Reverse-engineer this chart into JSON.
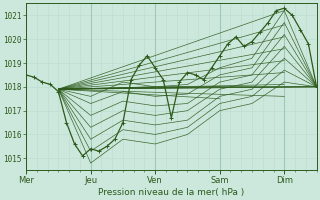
{
  "title": "",
  "xlabel": "Pression niveau de la mer( hPa )",
  "ylabel": "",
  "bg_color": "#cce8dc",
  "grid_color_major": "#a0c8b8",
  "grid_color_minor": "#b8dccf",
  "line_color": "#2d5a1b",
  "ylim": [
    1014.5,
    1021.5
  ],
  "yticks": [
    1015,
    1016,
    1017,
    1018,
    1019,
    1020,
    1021
  ],
  "day_labels": [
    "Mer",
    "Jeu",
    "Ven",
    "Sam",
    "Dim"
  ],
  "day_positions": [
    0,
    24,
    48,
    72,
    96
  ],
  "xlim": [
    0,
    108
  ],
  "fan_origin_x": 12,
  "fan_origin_y": 1017.9,
  "fan_endpoints": [
    [
      108,
      1018.0
    ],
    [
      108,
      1018.0
    ],
    [
      96,
      1021.2
    ],
    [
      96,
      1020.6
    ],
    [
      96,
      1020.1
    ],
    [
      96,
      1019.6
    ],
    [
      96,
      1019.1
    ],
    [
      96,
      1018.6
    ],
    [
      96,
      1018.1
    ],
    [
      96,
      1017.6
    ],
    [
      72,
      1018.0
    ],
    [
      72,
      1017.5
    ],
    [
      48,
      1018.0
    ]
  ],
  "main_line_x": [
    0,
    3,
    6,
    9,
    12,
    15,
    18,
    21,
    24,
    27,
    30,
    33,
    36,
    39,
    42,
    45,
    48,
    51,
    54,
    57,
    60,
    63,
    66,
    69,
    72,
    75,
    78,
    81,
    84,
    87,
    90,
    93,
    96,
    99,
    102,
    105,
    108
  ],
  "main_line_y": [
    1018.5,
    1018.4,
    1018.2,
    1018.1,
    1017.8,
    1016.5,
    1015.6,
    1015.1,
    1015.4,
    1015.3,
    1015.5,
    1015.8,
    1016.5,
    1018.3,
    1018.9,
    1019.3,
    1018.8,
    1018.3,
    1016.7,
    1018.2,
    1018.6,
    1018.5,
    1018.3,
    1018.8,
    1019.3,
    1019.8,
    1020.1,
    1019.7,
    1019.9,
    1020.3,
    1020.7,
    1021.2,
    1021.3,
    1021.0,
    1020.4,
    1019.8,
    1018.0
  ],
  "extra_lines": [
    {
      "x": [
        12,
        24,
        36,
        48,
        60,
        72,
        84,
        96,
        108
      ],
      "y": [
        1017.9,
        1017.6,
        1018.2,
        1018.0,
        1018.1,
        1018.8,
        1019.2,
        1021.2,
        1018.0
      ]
    },
    {
      "x": [
        12,
        24,
        36,
        48,
        60,
        72,
        84,
        96,
        108
      ],
      "y": [
        1017.9,
        1017.3,
        1017.8,
        1017.6,
        1017.7,
        1018.5,
        1018.8,
        1020.7,
        1018.0
      ]
    },
    {
      "x": [
        12,
        24,
        36,
        48,
        60,
        72,
        84,
        96,
        108
      ],
      "y": [
        1017.9,
        1016.8,
        1017.4,
        1017.2,
        1017.3,
        1018.2,
        1018.5,
        1020.2,
        1018.0
      ]
    },
    {
      "x": [
        12,
        24,
        36,
        48,
        60,
        72,
        84,
        96,
        108
      ],
      "y": [
        1017.9,
        1016.3,
        1017.0,
        1016.8,
        1017.0,
        1017.9,
        1018.2,
        1019.7,
        1018.0
      ]
    },
    {
      "x": [
        12,
        24,
        36,
        48,
        60,
        72,
        84,
        96,
        108
      ],
      "y": [
        1017.9,
        1015.8,
        1016.6,
        1016.4,
        1016.6,
        1017.6,
        1017.9,
        1019.2,
        1018.0
      ]
    },
    {
      "x": [
        12,
        24,
        36,
        48,
        60,
        72,
        84,
        96,
        108
      ],
      "y": [
        1017.9,
        1015.3,
        1016.2,
        1016.0,
        1016.3,
        1017.3,
        1017.6,
        1018.7,
        1018.0
      ]
    },
    {
      "x": [
        12,
        24,
        36,
        48,
        60,
        72,
        84,
        96,
        108
      ],
      "y": [
        1017.9,
        1014.8,
        1015.8,
        1015.6,
        1016.0,
        1017.0,
        1017.3,
        1018.2,
        1018.0
      ]
    },
    {
      "x": [
        12,
        72,
        108
      ],
      "y": [
        1017.9,
        1018.0,
        1018.0
      ]
    },
    {
      "x": [
        12,
        48,
        108
      ],
      "y": [
        1017.9,
        1018.0,
        1018.0
      ]
    }
  ]
}
